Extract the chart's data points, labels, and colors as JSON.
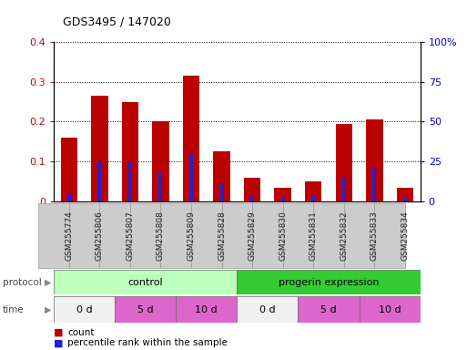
{
  "title": "GDS3495 / 147020",
  "samples": [
    "GSM255774",
    "GSM255806",
    "GSM255807",
    "GSM255808",
    "GSM255809",
    "GSM255828",
    "GSM255829",
    "GSM255830",
    "GSM255831",
    "GSM255832",
    "GSM255833",
    "GSM255834"
  ],
  "count_values": [
    0.16,
    0.265,
    0.25,
    0.2,
    0.315,
    0.125,
    0.06,
    0.035,
    0.05,
    0.195,
    0.205,
    0.035
  ],
  "percentile_values": [
    0.02,
    0.1,
    0.1,
    0.075,
    0.12,
    0.045,
    0.015,
    0.01,
    0.015,
    0.06,
    0.085,
    0.01
  ],
  "ylim_left": [
    0,
    0.4
  ],
  "ylim_right": [
    0,
    100
  ],
  "yticks_left": [
    0,
    0.1,
    0.2,
    0.3,
    0.4
  ],
  "ytick_labels_left": [
    "0",
    "0.1",
    "0.2",
    "0.3",
    "0.4"
  ],
  "yticks_right": [
    0,
    25,
    50,
    75,
    100
  ],
  "ytick_labels_right": [
    "0",
    "25",
    "50",
    "75",
    "100%"
  ],
  "bar_color": "#bb0000",
  "percentile_color": "#2222cc",
  "bar_width": 0.55,
  "percentile_bar_width": 0.12,
  "protocol_groups": [
    {
      "label": "control",
      "start": 0,
      "end": 6,
      "color": "#bbffbb"
    },
    {
      "label": "progerin expression",
      "start": 6,
      "end": 12,
      "color": "#33cc33"
    }
  ],
  "time_groups": [
    {
      "label": "0 d",
      "start": 0,
      "end": 2,
      "color": "#f0f0f0"
    },
    {
      "label": "5 d",
      "start": 2,
      "end": 4,
      "color": "#dd66cc"
    },
    {
      "label": "10 d",
      "start": 4,
      "end": 6,
      "color": "#dd66cc"
    },
    {
      "label": "0 d",
      "start": 6,
      "end": 8,
      "color": "#f0f0f0"
    },
    {
      "label": "5 d",
      "start": 8,
      "end": 10,
      "color": "#dd66cc"
    },
    {
      "label": "10 d",
      "start": 10,
      "end": 12,
      "color": "#dd66cc"
    }
  ],
  "legend_count_label": "count",
  "legend_percentile_label": "percentile rank within the sample",
  "background_color": "#ffffff",
  "tick_label_color_left": "#cc0000",
  "tick_label_color_right": "#0000cc",
  "xticklabel_bg_color": "#cccccc",
  "xticklabel_border_color": "#999999"
}
